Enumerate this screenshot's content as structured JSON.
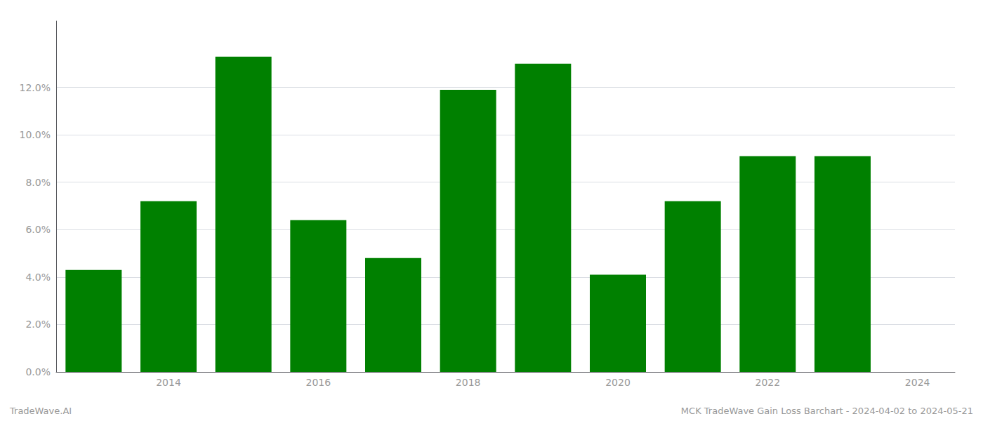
{
  "chart_data": {
    "type": "bar",
    "x": [
      2013,
      2014,
      2015,
      2016,
      2017,
      2018,
      2019,
      2020,
      2021,
      2022,
      2023
    ],
    "values": [
      0.043,
      0.072,
      0.133,
      0.064,
      0.048,
      0.119,
      0.13,
      0.041,
      0.072,
      0.091,
      0.091
    ],
    "color": "#008000",
    "xlim": [
      2012.5,
      2024.5
    ],
    "xticks": [
      2014,
      2016,
      2018,
      2020,
      2022,
      2024
    ],
    "ylim": [
      0,
      0.148
    ],
    "yticks": [
      {
        "value": 0.0,
        "label": "0.0%"
      },
      {
        "value": 0.02,
        "label": "2.0%"
      },
      {
        "value": 0.04,
        "label": "4.0%"
      },
      {
        "value": 0.06,
        "label": "6.0%"
      },
      {
        "value": 0.08,
        "label": "8.0%"
      },
      {
        "value": 0.1,
        "label": "10.0%"
      },
      {
        "value": 0.12,
        "label": "12.0%"
      }
    ],
    "grid": true,
    "annotations": [
      "TradeWave.AI",
      "MCK TradeWave Gain Loss Barchart - 2024-04-02 to 2024-05-21"
    ]
  }
}
